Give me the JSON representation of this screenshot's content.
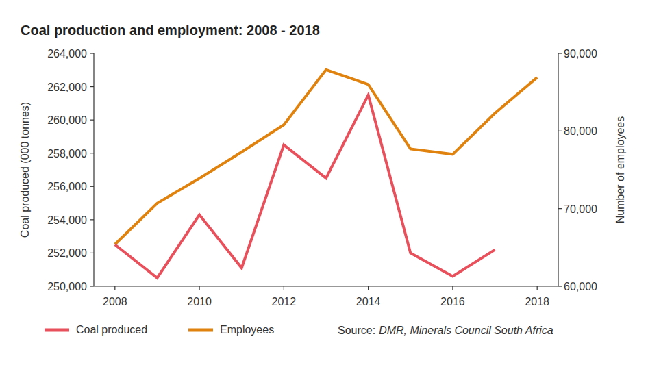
{
  "chart_data": {
    "type": "line",
    "title": "Coal production and employment: 2008 - 2018",
    "y_label": "Coal produced (000 tonnes)",
    "y2_label": "Number of employees",
    "source_label": "Source:",
    "source": "DMR, Minerals Council South Africa",
    "x": [
      2008,
      2009,
      2010,
      2011,
      2012,
      2013,
      2014,
      2015,
      2016,
      2017,
      2018
    ],
    "xlim": [
      2007.5,
      2018.5
    ],
    "xticks": [
      2008,
      2010,
      2012,
      2014,
      2016,
      2018
    ],
    "ylim": [
      250000,
      264000
    ],
    "yticks": [
      {
        "value": 250000,
        "label": "250,000"
      },
      {
        "value": 252000,
        "label": "252,000"
      },
      {
        "value": 254000,
        "label": "254,000"
      },
      {
        "value": 256000,
        "label": "256,000"
      },
      {
        "value": 258000,
        "label": "258,000"
      },
      {
        "value": 260000,
        "label": "260,000"
      },
      {
        "value": 262000,
        "label": "262,000"
      },
      {
        "value": 264000,
        "label": "264,000"
      }
    ],
    "y2lim": [
      60000,
      90000
    ],
    "y2ticks": [
      {
        "value": 60000,
        "label": "60,000"
      },
      {
        "value": 70000,
        "label": "70,000"
      },
      {
        "value": 80000,
        "label": "80,000"
      },
      {
        "value": 90000,
        "label": "90,000"
      }
    ],
    "grid": false,
    "legend": "bottom",
    "series": [
      {
        "name": "Coal produced",
        "color": "#e8505b",
        "line_style": "solid",
        "values": [
          252500,
          250500,
          254300,
          251100,
          258500,
          256500,
          261500,
          252000,
          250600,
          252200,
          null
        ]
      },
      {
        "name": "Employees",
        "color": "#e0820e",
        "line_style": "solid",
        "axis": "y2",
        "values": [
          65400,
          70700,
          73900,
          77300,
          80800,
          87900,
          86000,
          77700,
          77000,
          82300,
          86900
        ]
      }
    ]
  }
}
